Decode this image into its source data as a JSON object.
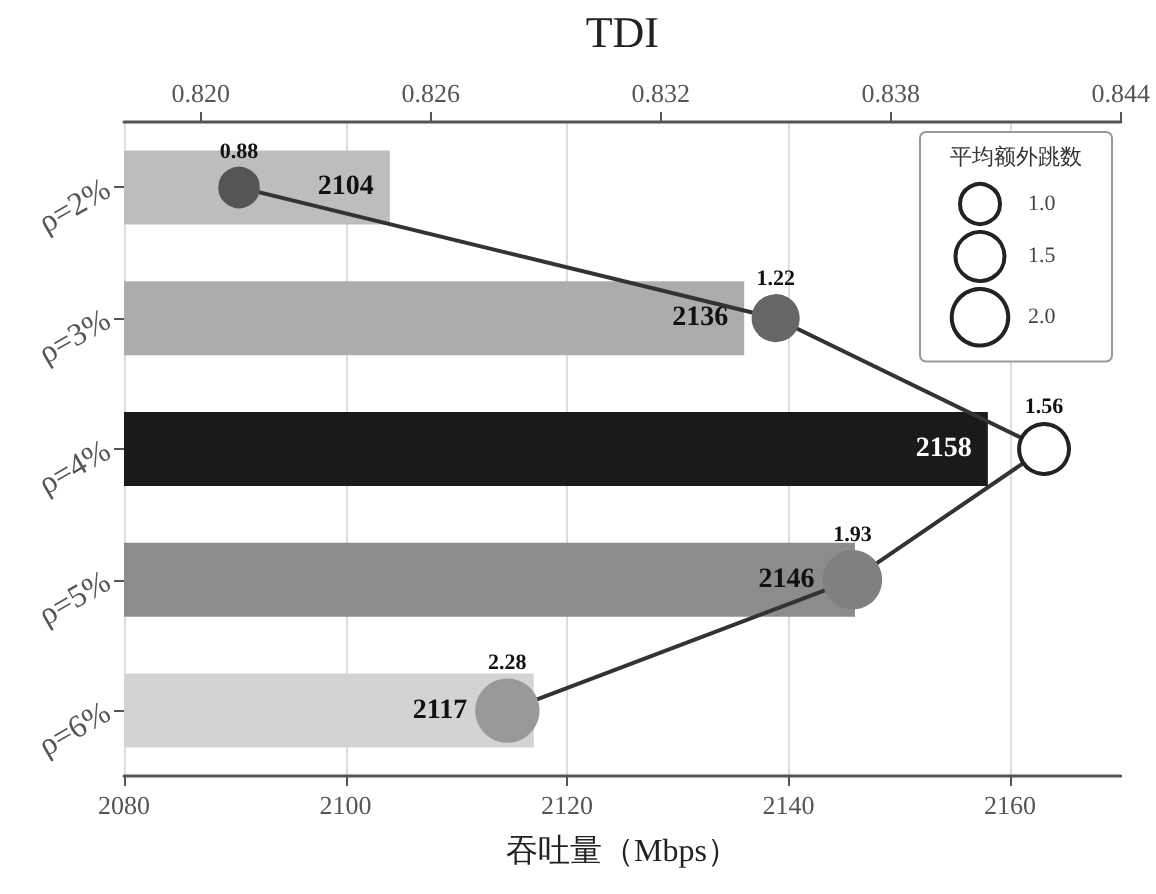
{
  "chart_data": {
    "type": "bar",
    "orientation": "horizontal",
    "x2label": "TDI",
    "xlabel": "吞吐量（Mbps）",
    "legend_title": "平均额外跳数",
    "size_legend": [
      {
        "value": 1,
        "label": "1.0"
      },
      {
        "value": 1.5,
        "label": "1.5"
      },
      {
        "value": 2,
        "label": "2.0"
      }
    ],
    "grid": "x",
    "data_labels": true,
    "categories": [
      "ρ=2%",
      "ρ=3%",
      "ρ=4%",
      "ρ=5%",
      "ρ=6%"
    ],
    "xlim": [
      2080,
      2170
    ],
    "xticks": [
      2080,
      2100,
      2120,
      2140,
      2160
    ],
    "x2lim": [
      0.818,
      0.844
    ],
    "x2ticks": [
      {
        "value": 0.82,
        "label": "0.820"
      },
      {
        "value": 0.826,
        "label": "0.826"
      },
      {
        "value": 0.832,
        "label": "0.832"
      },
      {
        "value": 0.838,
        "label": "0.838"
      },
      {
        "value": 0.844,
        "label": "0.844"
      }
    ],
    "series": [
      {
        "type": "bar",
        "values": [
          2104,
          2136,
          2158,
          2146,
          2117
        ],
        "colors": [
          "#bdbdbd",
          "#acacac",
          "#1a1a1a",
          "#8c8c8c",
          "#d3d3d3"
        ]
      },
      {
        "type": "bubble",
        "axis": "x2",
        "values": [
          0.821,
          0.835,
          0.842,
          0.837,
          0.828
        ],
        "sizes": [
          0.88,
          1.22,
          1.56,
          1.93,
          2.28
        ],
        "value_labels": [
          "0.88",
          "1.22",
          "1.56",
          "1.93",
          "2.28"
        ],
        "colors": [
          "#555555",
          "#666666",
          "#ffffff",
          "#808080",
          "#999999"
        ],
        "color": "#333333",
        "marker": "circle",
        "line_style": "solid"
      }
    ]
  }
}
